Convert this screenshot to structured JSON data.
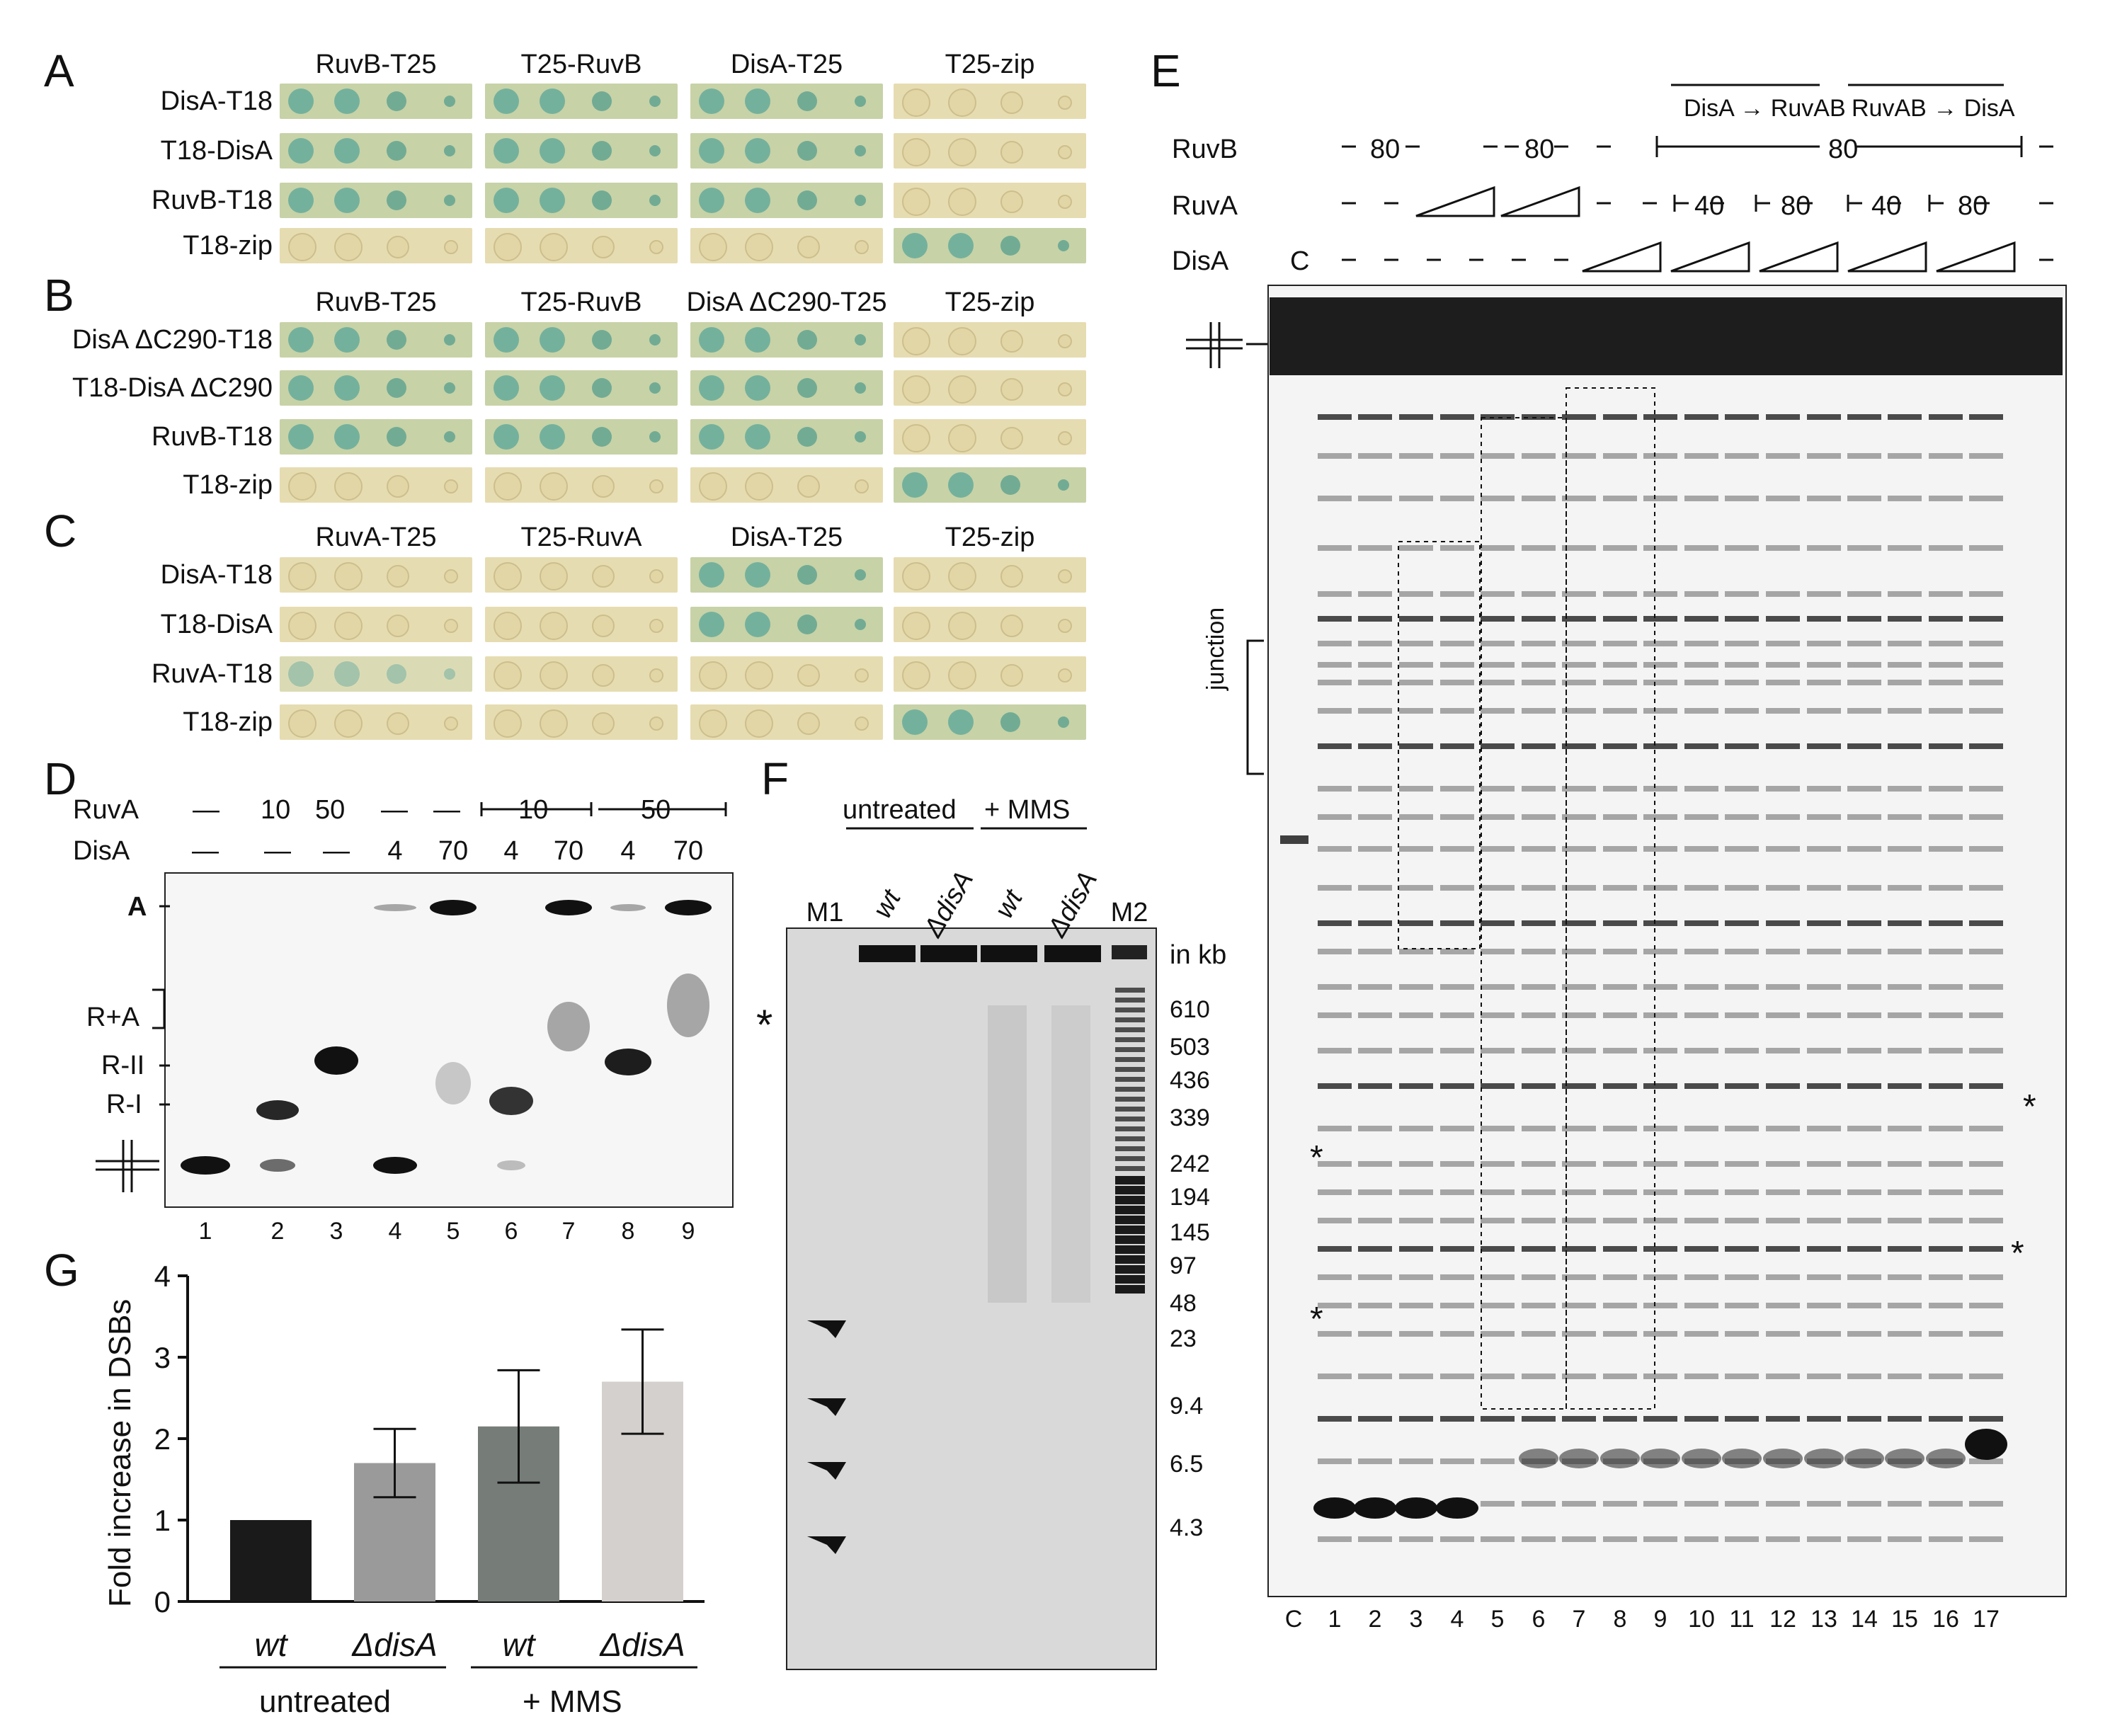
{
  "panels": {
    "A": {
      "letter": "A",
      "cols": [
        "RuvB-T25",
        "T25-RuvB",
        "DisA-T25",
        "T25-zip"
      ],
      "rows": [
        "DisA-T18",
        "T18-DisA",
        "RuvB-T18",
        "T18-zip"
      ]
    },
    "B": {
      "letter": "B",
      "cols": [
        "RuvB-T25",
        "T25-RuvB",
        "DisA ΔC290-T25",
        "T25-zip"
      ],
      "rows": [
        "DisA ΔC290-T18",
        "T18-DisA ΔC290",
        "RuvB-T18",
        "T18-zip"
      ]
    },
    "C": {
      "letter": "C",
      "cols": [
        "RuvA-T25",
        "T25-RuvA",
        "DisA-T25",
        "T25-zip"
      ],
      "rows": [
        "DisA-T18",
        "T18-DisA",
        "RuvA-T18",
        "T18-zip"
      ]
    },
    "D": {
      "letter": "D",
      "ruva_label": "RuvA",
      "disa_label": "DisA",
      "ruva_vals": [
        "—",
        "10",
        "50",
        "—",
        "—"
      ],
      "ruva_bracket_10": "10",
      "ruva_bracket_50": "50",
      "disa_vals": [
        "—",
        "—",
        "—",
        "4",
        "70",
        "4",
        "70",
        "4",
        "70"
      ],
      "band_labels": {
        "A": "A",
        "RA": "R+A",
        "RII": "R-II",
        "RI": "R-I"
      },
      "lanes": [
        "1",
        "2",
        "3",
        "4",
        "5",
        "6",
        "7",
        "8",
        "9"
      ]
    },
    "E": {
      "letter": "E",
      "ruvb_label": "RuvB",
      "ruva_label": "RuvA",
      "disa_label": "DisA",
      "order1": "DisA → RuvAB",
      "order2": "RuvAB → DisA",
      "ruvb_80a": "80",
      "ruvb_80b": "80",
      "ruvb_80c": "80",
      "ruva_vals": [
        "40",
        "80",
        "40",
        "80"
      ],
      "c_label": "C",
      "junction": "junction",
      "lanes": [
        "C",
        "1",
        "2",
        "3",
        "4",
        "5",
        "6",
        "7",
        "8",
        "9",
        "10",
        "11",
        "12",
        "13",
        "14",
        "15",
        "16",
        "17"
      ]
    },
    "F": {
      "letter": "F",
      "group1": "untreated",
      "group2": "+ MMS",
      "lanes": [
        "M1",
        "wt",
        "ΔdisA",
        "wt",
        "ΔdisA",
        "M2"
      ],
      "unit": "in kb",
      "markers": [
        "610",
        "503",
        "436",
        "339",
        "242",
        "194",
        "145",
        "97",
        "48",
        "23",
        "9.4",
        "6.5",
        "4.3"
      ]
    },
    "G": {
      "letter": "G"
    }
  },
  "chart_data": {
    "type": "bar",
    "categories": [
      "wt",
      "ΔdisA",
      "wt",
      "ΔdisA"
    ],
    "groups": [
      "untreated",
      "+ MMS"
    ],
    "values": [
      1.0,
      1.7,
      2.15,
      2.7
    ],
    "errors": [
      0,
      0.42,
      0.69,
      0.64
    ],
    "colors": [
      "#1a1a1a",
      "#9a9a9a",
      "#767d78",
      "#d4d0cd"
    ],
    "title": "",
    "xlabel": "",
    "ylabel": "Fold increase in DSBs",
    "ylim": [
      0,
      4
    ],
    "yticks": [
      "0",
      "1",
      "2",
      "3",
      "4"
    ]
  }
}
